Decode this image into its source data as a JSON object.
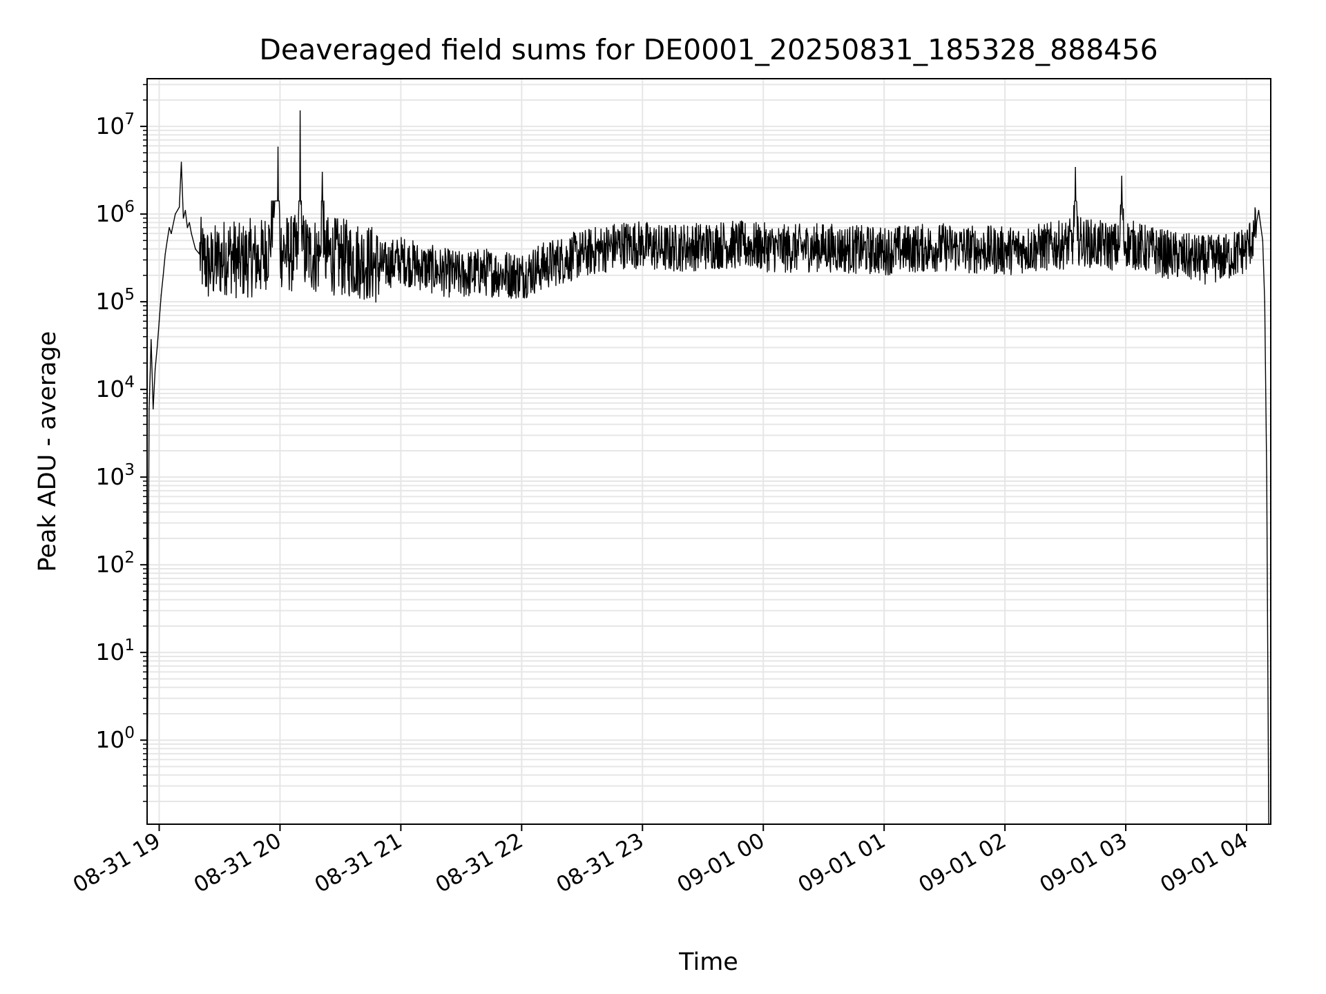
{
  "chart_data": {
    "type": "line",
    "title": "Deaveraged field sums for DE0001_20250831_185328_888456",
    "xlabel": "Time",
    "ylabel": "Peak ADU - average",
    "yscale": "log",
    "ylim": [
      0.11,
      35000000
    ],
    "xlim": [
      "2025-08-31 18:54:00",
      "2025-09-01 04:12:00"
    ],
    "grid": true,
    "line_color": "#000000",
    "grid_color": "#e6e6e6",
    "x_ticks": [
      {
        "value": "2025-08-31 19:00:00",
        "label": "08-31 19"
      },
      {
        "value": "2025-08-31 20:00:00",
        "label": "08-31 20"
      },
      {
        "value": "2025-08-31 21:00:00",
        "label": "08-31 21"
      },
      {
        "value": "2025-08-31 22:00:00",
        "label": "08-31 22"
      },
      {
        "value": "2025-08-31 23:00:00",
        "label": "08-31 23"
      },
      {
        "value": "2025-09-01 00:00:00",
        "label": "09-01 00"
      },
      {
        "value": "2025-09-01 01:00:00",
        "label": "09-01 01"
      },
      {
        "value": "2025-09-01 02:00:00",
        "label": "09-01 02"
      },
      {
        "value": "2025-09-01 03:00:00",
        "label": "09-01 03"
      },
      {
        "value": "2025-09-01 04:00:00",
        "label": "09-01 04"
      }
    ],
    "y_ticks": [
      {
        "value": 1,
        "base": "10",
        "exp": "0"
      },
      {
        "value": 10,
        "base": "10",
        "exp": "1"
      },
      {
        "value": 100,
        "base": "10",
        "exp": "2"
      },
      {
        "value": 1000,
        "base": "10",
        "exp": "3"
      },
      {
        "value": 10000,
        "base": "10",
        "exp": "4"
      },
      {
        "value": 100000,
        "base": "10",
        "exp": "5"
      },
      {
        "value": 1000000,
        "base": "10",
        "exp": "6"
      },
      {
        "value": 10000000,
        "base": "10",
        "exp": "7"
      }
    ],
    "series": [
      {
        "x": [
          "2025-08-31 18:54:00",
          "2025-08-31 18:55:00",
          "2025-08-31 18:56:00",
          "2025-08-31 18:57:00",
          "2025-08-31 18:58:00",
          "2025-08-31 18:59:00",
          "2025-08-31 19:00:00",
          "2025-08-31 19:01:00",
          "2025-08-31 19:02:00",
          "2025-08-31 19:03:00",
          "2025-08-31 19:04:00",
          "2025-08-31 19:05:00",
          "2025-08-31 19:06:00",
          "2025-08-31 19:08:00",
          "2025-08-31 19:10:00",
          "2025-08-31 19:11:00",
          "2025-08-31 19:12:00",
          "2025-08-31 19:13:00",
          "2025-08-31 19:14:00",
          "2025-08-31 19:15:00",
          "2025-08-31 19:16:00",
          "2025-08-31 19:18:00",
          "2025-08-31 19:20:00",
          "2025-08-31 19:22:00",
          "2025-08-31 19:25:00",
          "2025-08-31 19:30:00",
          "2025-08-31 19:35:00",
          "2025-08-31 19:40:00",
          "2025-08-31 19:45:00",
          "2025-08-31 19:50:00",
          "2025-08-31 19:55:00",
          "2025-08-31 19:59:00",
          "2025-08-31 20:00:00",
          "2025-08-31 20:05:00",
          "2025-08-31 20:09:00",
          "2025-08-31 20:10:00",
          "2025-08-31 20:11:00",
          "2025-08-31 20:15:00",
          "2025-08-31 20:20:00",
          "2025-08-31 20:21:00",
          "2025-08-31 20:22:00",
          "2025-08-31 20:30:00",
          "2025-08-31 20:40:00",
          "2025-08-31 20:50:00",
          "2025-08-31 21:00:00",
          "2025-08-31 21:10:00",
          "2025-08-31 21:20:00",
          "2025-08-31 21:30:00",
          "2025-08-31 21:40:00",
          "2025-08-31 21:50:00",
          "2025-08-31 22:00:00",
          "2025-08-31 22:10:00",
          "2025-08-31 22:20:00",
          "2025-08-31 22:30:00",
          "2025-08-31 22:40:00",
          "2025-08-31 22:50:00",
          "2025-08-31 23:00:00",
          "2025-08-31 23:10:00",
          "2025-08-31 23:20:00",
          "2025-08-31 23:30:00",
          "2025-08-31 23:40:00",
          "2025-08-31 23:50:00",
          "2025-09-01 00:00:00",
          "2025-09-01 00:10:00",
          "2025-09-01 00:20:00",
          "2025-09-01 00:30:00",
          "2025-09-01 00:40:00",
          "2025-09-01 00:50:00",
          "2025-09-01 01:00:00",
          "2025-09-01 01:10:00",
          "2025-09-01 01:20:00",
          "2025-09-01 01:30:00",
          "2025-09-01 01:40:00",
          "2025-09-01 01:50:00",
          "2025-09-01 02:00:00",
          "2025-09-01 02:10:00",
          "2025-09-01 02:20:00",
          "2025-09-01 02:30:00",
          "2025-09-01 02:34:00",
          "2025-09-01 02:35:00",
          "2025-09-01 02:36:00",
          "2025-09-01 02:45:00",
          "2025-09-01 02:57:00",
          "2025-09-01 02:58:00",
          "2025-09-01 02:59:00",
          "2025-09-01 03:10:00",
          "2025-09-01 03:20:00",
          "2025-09-01 03:30:00",
          "2025-09-01 03:40:00",
          "2025-09-01 03:50:00",
          "2025-09-01 04:00:00",
          "2025-09-01 04:04:00",
          "2025-09-01 04:06:00",
          "2025-09-01 04:08:00",
          "2025-09-01 04:09:00",
          "2025-09-01 04:10:00",
          "2025-09-01 04:11:00"
        ],
        "y": [
          0.11,
          6000,
          37000,
          6000,
          17000,
          30000,
          60000,
          120000,
          200000,
          350000,
          500000,
          700000,
          600000,
          1000000,
          1200000,
          3900000,
          900000,
          1100000,
          700000,
          800000,
          600000,
          400000,
          350000,
          300000,
          250000,
          300000,
          350000,
          280000,
          320000,
          300000,
          450000,
          5800000,
          400000,
          350000,
          350000,
          15000000,
          380000,
          350000,
          330000,
          3000000,
          350000,
          320000,
          300000,
          250000,
          300000,
          250000,
          220000,
          200000,
          220000,
          210000,
          200000,
          250000,
          300000,
          350000,
          400000,
          450000,
          450000,
          400000,
          420000,
          430000,
          450000,
          440000,
          420000,
          400000,
          410000,
          420000,
          400000,
          390000,
          380000,
          400000,
          410000,
          420000,
          400000,
          390000,
          380000,
          400000,
          420000,
          450000,
          480000,
          3400000,
          500000,
          450000,
          420000,
          2700000,
          480000,
          400000,
          350000,
          320000,
          300000,
          320000,
          400000,
          600000,
          1100000,
          500000,
          100000,
          1000,
          0.11
        ],
        "jitter_dex": 0.28
      }
    ]
  }
}
